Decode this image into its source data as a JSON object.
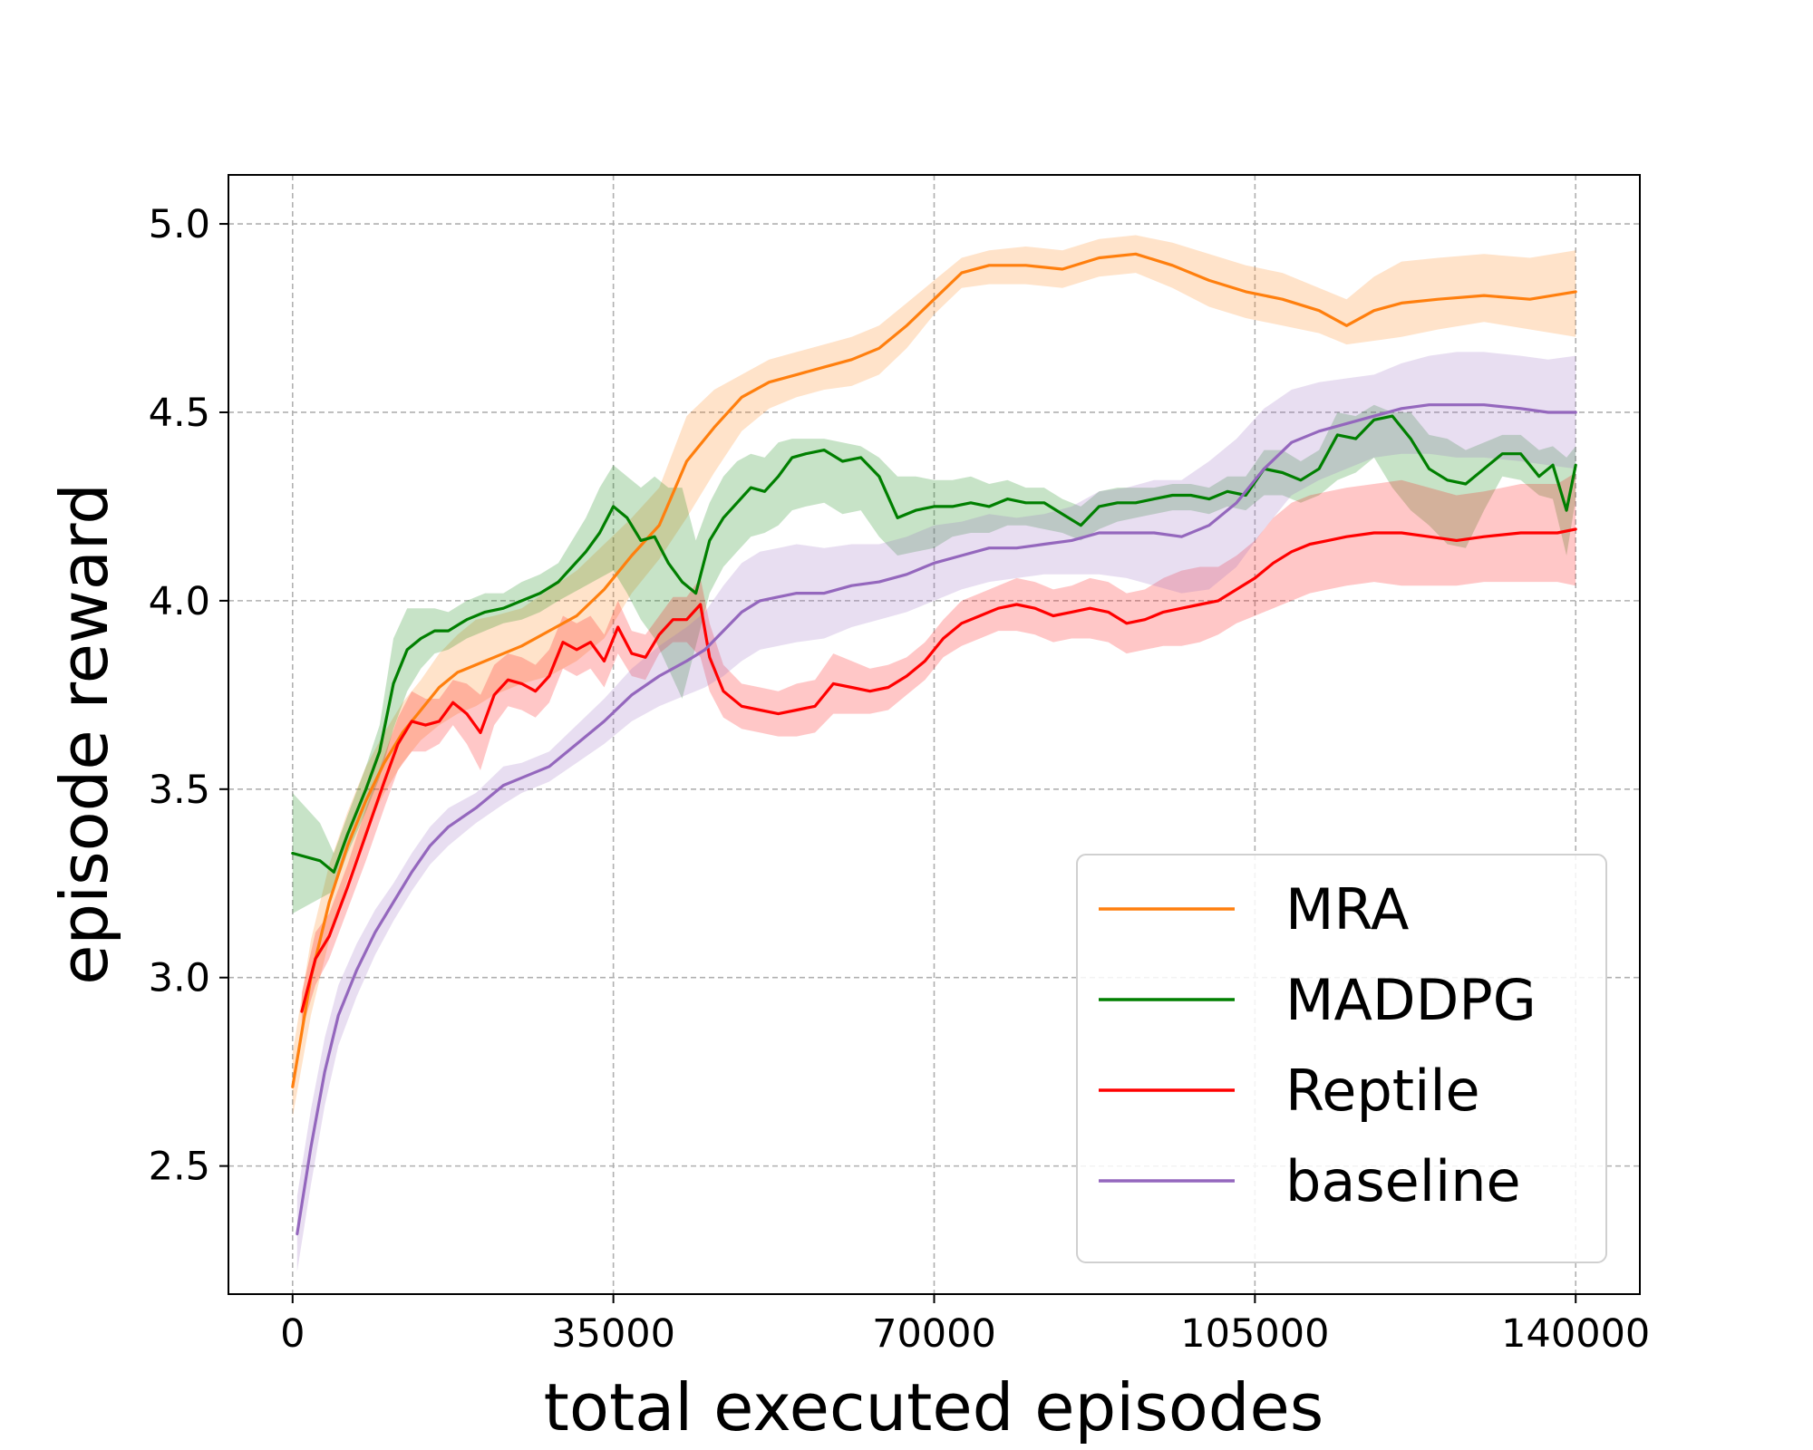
{
  "chart_data": {
    "type": "line",
    "title": "",
    "xlabel": "total executed episodes",
    "ylabel": "episode reward",
    "xlim": [
      -7000,
      147000
    ],
    "ylim": [
      2.16,
      5.13
    ],
    "xticks": [
      0,
      35000,
      70000,
      105000,
      140000
    ],
    "xtick_labels": [
      "0",
      "35000",
      "70000",
      "105000",
      "140000"
    ],
    "yticks": [
      2.5,
      3.0,
      3.5,
      4.0,
      4.5,
      5.0
    ],
    "ytick_labels": [
      "2.5",
      "3.0",
      "3.5",
      "4.0",
      "4.5",
      "5.0"
    ],
    "grid": true,
    "legend_position": "lower-right",
    "series": [
      {
        "name": "MRA",
        "color": "#ff7f0e",
        "x": [
          0,
          2000,
          4000,
          6000,
          8000,
          10000,
          12000,
          14000,
          16000,
          18000,
          20000,
          22000,
          25000,
          28000,
          31000,
          34000,
          37000,
          40000,
          43000,
          46000,
          49000,
          52000,
          55000,
          58000,
          61000,
          64000,
          67000,
          70000,
          73000,
          76000,
          80000,
          84000,
          88000,
          92000,
          96000,
          100000,
          104000,
          108000,
          112000,
          115000,
          118000,
          121000,
          125000,
          130000,
          135000,
          140000
        ],
        "y": [
          2.71,
          3.0,
          3.2,
          3.35,
          3.47,
          3.57,
          3.65,
          3.71,
          3.77,
          3.81,
          3.83,
          3.85,
          3.88,
          3.92,
          3.96,
          4.03,
          4.12,
          4.2,
          4.37,
          4.46,
          4.54,
          4.58,
          4.6,
          4.62,
          4.64,
          4.67,
          4.73,
          4.8,
          4.87,
          4.89,
          4.89,
          4.88,
          4.91,
          4.92,
          4.89,
          4.85,
          4.82,
          4.8,
          4.77,
          4.73,
          4.77,
          4.79,
          4.8,
          4.81,
          4.8,
          4.82
        ],
        "lower": [
          2.63,
          2.9,
          3.1,
          3.26,
          3.39,
          3.49,
          3.57,
          3.63,
          3.67,
          3.7,
          3.72,
          3.75,
          3.78,
          3.8,
          3.84,
          3.9,
          4.02,
          4.11,
          4.22,
          4.34,
          4.45,
          4.51,
          4.54,
          4.56,
          4.57,
          4.6,
          4.67,
          4.76,
          4.83,
          4.84,
          4.84,
          4.83,
          4.86,
          4.87,
          4.83,
          4.78,
          4.75,
          4.73,
          4.71,
          4.68,
          4.69,
          4.7,
          4.72,
          4.74,
          4.72,
          4.7
        ],
        "upper": [
          2.8,
          3.1,
          3.3,
          3.44,
          3.56,
          3.65,
          3.73,
          3.79,
          3.86,
          3.91,
          3.95,
          3.96,
          3.98,
          4.03,
          4.08,
          4.15,
          4.22,
          4.3,
          4.49,
          4.56,
          4.6,
          4.64,
          4.66,
          4.68,
          4.7,
          4.73,
          4.79,
          4.85,
          4.91,
          4.93,
          4.94,
          4.93,
          4.96,
          4.97,
          4.95,
          4.92,
          4.89,
          4.87,
          4.83,
          4.8,
          4.86,
          4.9,
          4.91,
          4.92,
          4.91,
          4.93
        ]
      },
      {
        "name": "MADDPG",
        "color": "#007f00",
        "x": [
          0,
          3000,
          4500,
          6000,
          8000,
          9500,
          11000,
          12500,
          14000,
          15500,
          17000,
          19000,
          21000,
          23000,
          25000,
          27000,
          29000,
          30500,
          32000,
          33500,
          35000,
          36500,
          38000,
          39500,
          41000,
          42500,
          44000,
          45500,
          47000,
          48500,
          50000,
          51500,
          53000,
          54500,
          56000,
          58000,
          60000,
          62000,
          64000,
          66000,
          68000,
          70000,
          72000,
          74000,
          76000,
          78000,
          80000,
          82000,
          84000,
          86000,
          88000,
          90000,
          92000,
          94000,
          96000,
          98000,
          100000,
          102000,
          104000,
          106000,
          108000,
          110000,
          112000,
          114000,
          116000,
          118000,
          120000,
          122000,
          124000,
          126000,
          128000,
          130000,
          132000,
          134000,
          136000,
          137500,
          139000,
          140000
        ],
        "y": [
          3.33,
          3.31,
          3.28,
          3.38,
          3.5,
          3.6,
          3.78,
          3.87,
          3.9,
          3.92,
          3.92,
          3.95,
          3.97,
          3.98,
          4.0,
          4.02,
          4.05,
          4.09,
          4.13,
          4.18,
          4.25,
          4.22,
          4.16,
          4.17,
          4.1,
          4.05,
          4.02,
          4.16,
          4.22,
          4.26,
          4.3,
          4.29,
          4.33,
          4.38,
          4.39,
          4.4,
          4.37,
          4.38,
          4.33,
          4.22,
          4.24,
          4.25,
          4.25,
          4.26,
          4.25,
          4.27,
          4.26,
          4.26,
          4.23,
          4.2,
          4.25,
          4.26,
          4.26,
          4.27,
          4.28,
          4.28,
          4.27,
          4.29,
          4.28,
          4.35,
          4.34,
          4.32,
          4.35,
          4.44,
          4.43,
          4.48,
          4.49,
          4.43,
          4.35,
          4.32,
          4.31,
          4.35,
          4.39,
          4.39,
          4.33,
          4.36,
          4.24,
          4.36
        ],
        "lower": [
          3.17,
          3.21,
          3.23,
          3.33,
          3.44,
          3.53,
          3.66,
          3.76,
          3.82,
          3.86,
          3.87,
          3.9,
          3.92,
          3.94,
          3.95,
          3.97,
          4.0,
          4.02,
          4.04,
          4.06,
          4.08,
          4.02,
          3.95,
          3.9,
          3.82,
          3.74,
          3.88,
          4.02,
          4.09,
          4.13,
          4.17,
          4.18,
          4.2,
          4.24,
          4.25,
          4.26,
          4.23,
          4.24,
          4.17,
          4.12,
          4.13,
          4.14,
          4.17,
          4.18,
          4.18,
          4.2,
          4.2,
          4.19,
          4.18,
          4.16,
          4.19,
          4.21,
          4.22,
          4.23,
          4.24,
          4.24,
          4.23,
          4.25,
          4.24,
          4.28,
          4.28,
          4.26,
          4.28,
          4.32,
          4.34,
          4.38,
          4.3,
          4.24,
          4.2,
          4.15,
          4.14,
          4.24,
          4.33,
          4.32,
          4.28,
          4.27,
          4.12,
          4.27
        ],
        "upper": [
          3.49,
          3.41,
          3.33,
          3.43,
          3.56,
          3.67,
          3.9,
          3.98,
          3.98,
          3.98,
          3.97,
          4.0,
          4.02,
          4.02,
          4.05,
          4.07,
          4.1,
          4.16,
          4.22,
          4.3,
          4.36,
          4.33,
          4.3,
          4.33,
          4.3,
          4.3,
          4.16,
          4.26,
          4.33,
          4.37,
          4.39,
          4.38,
          4.42,
          4.43,
          4.43,
          4.43,
          4.42,
          4.41,
          4.38,
          4.33,
          4.33,
          4.32,
          4.32,
          4.33,
          4.31,
          4.32,
          4.3,
          4.3,
          4.27,
          4.25,
          4.29,
          4.3,
          4.3,
          4.3,
          4.31,
          4.31,
          4.3,
          4.33,
          4.33,
          4.4,
          4.4,
          4.37,
          4.4,
          4.5,
          4.49,
          4.52,
          4.5,
          4.5,
          4.44,
          4.43,
          4.4,
          4.42,
          4.44,
          4.44,
          4.4,
          4.41,
          4.38,
          4.41
        ]
      },
      {
        "name": "Reptile",
        "color": "#ff0000",
        "x": [
          1000,
          2500,
          4000,
          6000,
          8000,
          10000,
          11500,
          13000,
          14500,
          16000,
          17500,
          19000,
          20500,
          22000,
          23500,
          25000,
          26500,
          28000,
          29500,
          31000,
          32500,
          34000,
          35500,
          37000,
          38500,
          40000,
          41500,
          43000,
          44500,
          45500,
          47000,
          49000,
          51000,
          53000,
          55000,
          57000,
          59000,
          61000,
          63000,
          65000,
          67000,
          69000,
          71000,
          73000,
          75000,
          77000,
          79000,
          81000,
          83000,
          85000,
          87000,
          89000,
          91000,
          93000,
          95000,
          97000,
          99000,
          101000,
          103000,
          105000,
          107000,
          109000,
          111000,
          113000,
          115000,
          118000,
          121000,
          124000,
          127000,
          130000,
          134000,
          138000,
          140000
        ],
        "y": [
          2.91,
          3.05,
          3.11,
          3.24,
          3.38,
          3.52,
          3.62,
          3.68,
          3.67,
          3.68,
          3.73,
          3.7,
          3.65,
          3.75,
          3.79,
          3.78,
          3.76,
          3.8,
          3.89,
          3.87,
          3.89,
          3.84,
          3.93,
          3.86,
          3.85,
          3.91,
          3.95,
          3.95,
          3.99,
          3.85,
          3.76,
          3.72,
          3.71,
          3.7,
          3.71,
          3.72,
          3.78,
          3.77,
          3.76,
          3.77,
          3.8,
          3.84,
          3.9,
          3.94,
          3.96,
          3.98,
          3.99,
          3.98,
          3.96,
          3.97,
          3.98,
          3.97,
          3.94,
          3.95,
          3.97,
          3.98,
          3.99,
          4.0,
          4.03,
          4.06,
          4.1,
          4.13,
          4.15,
          4.16,
          4.17,
          4.18,
          4.18,
          4.17,
          4.16,
          4.17,
          4.18,
          4.18,
          4.19
        ],
        "lower": [
          2.86,
          2.98,
          3.05,
          3.18,
          3.31,
          3.45,
          3.55,
          3.6,
          3.6,
          3.62,
          3.67,
          3.62,
          3.55,
          3.67,
          3.72,
          3.71,
          3.69,
          3.73,
          3.82,
          3.8,
          3.82,
          3.77,
          3.86,
          3.8,
          3.79,
          3.86,
          3.89,
          3.89,
          3.85,
          3.76,
          3.69,
          3.66,
          3.65,
          3.64,
          3.64,
          3.65,
          3.7,
          3.7,
          3.7,
          3.71,
          3.75,
          3.79,
          3.85,
          3.88,
          3.9,
          3.92,
          3.92,
          3.91,
          3.89,
          3.9,
          3.9,
          3.89,
          3.86,
          3.87,
          3.88,
          3.88,
          3.89,
          3.91,
          3.94,
          3.96,
          3.98,
          4.0,
          4.02,
          4.03,
          4.04,
          4.05,
          4.04,
          4.04,
          4.04,
          4.05,
          4.05,
          4.05,
          4.04
        ],
        "upper": [
          2.96,
          3.12,
          3.17,
          3.3,
          3.45,
          3.59,
          3.69,
          3.76,
          3.74,
          3.74,
          3.79,
          3.78,
          3.75,
          3.83,
          3.86,
          3.85,
          3.83,
          3.87,
          3.96,
          3.94,
          3.96,
          3.91,
          4.0,
          3.92,
          3.91,
          3.96,
          4.01,
          4.01,
          4.06,
          3.94,
          3.83,
          3.78,
          3.77,
          3.76,
          3.78,
          3.79,
          3.86,
          3.84,
          3.82,
          3.83,
          3.85,
          3.89,
          3.95,
          4.0,
          4.02,
          4.04,
          4.06,
          4.05,
          4.03,
          4.04,
          4.06,
          4.05,
          4.02,
          4.03,
          4.06,
          4.08,
          4.09,
          4.09,
          4.12,
          4.16,
          4.22,
          4.26,
          4.28,
          4.29,
          4.3,
          4.31,
          4.32,
          4.3,
          4.28,
          4.29,
          4.31,
          4.31,
          4.34
        ]
      },
      {
        "name": "baseline",
        "color": "#9467bd",
        "x": [
          500,
          2000,
          3500,
          5000,
          7000,
          9000,
          11000,
          13000,
          15000,
          17000,
          20000,
          23000,
          25000,
          28000,
          31000,
          34000,
          37000,
          40000,
          43000,
          45000,
          47000,
          49000,
          51000,
          53000,
          55000,
          58000,
          61000,
          64000,
          67000,
          70000,
          73000,
          76000,
          79000,
          82000,
          85000,
          88000,
          91000,
          94000,
          97000,
          100000,
          103000,
          106000,
          109000,
          112000,
          115000,
          118000,
          121000,
          124000,
          127000,
          130000,
          134000,
          137000,
          140000
        ],
        "y": [
          2.32,
          2.55,
          2.75,
          2.9,
          3.02,
          3.12,
          3.2,
          3.28,
          3.35,
          3.4,
          3.45,
          3.51,
          3.53,
          3.56,
          3.62,
          3.68,
          3.75,
          3.8,
          3.84,
          3.87,
          3.92,
          3.97,
          4.0,
          4.01,
          4.02,
          4.02,
          4.04,
          4.05,
          4.07,
          4.1,
          4.12,
          4.14,
          4.14,
          4.15,
          4.16,
          4.18,
          4.18,
          4.18,
          4.17,
          4.2,
          4.26,
          4.35,
          4.42,
          4.45,
          4.47,
          4.49,
          4.51,
          4.52,
          4.52,
          4.52,
          4.51,
          4.5,
          4.5
        ],
        "lower": [
          2.22,
          2.45,
          2.66,
          2.82,
          2.95,
          3.06,
          3.15,
          3.23,
          3.3,
          3.35,
          3.41,
          3.46,
          3.49,
          3.52,
          3.57,
          3.62,
          3.68,
          3.72,
          3.75,
          3.77,
          3.8,
          3.84,
          3.87,
          3.88,
          3.89,
          3.9,
          3.93,
          3.95,
          3.97,
          4.0,
          4.03,
          4.05,
          4.06,
          4.07,
          4.07,
          4.07,
          4.06,
          4.04,
          4.02,
          4.03,
          4.09,
          4.19,
          4.28,
          4.32,
          4.35,
          4.38,
          4.39,
          4.39,
          4.38,
          4.38,
          4.37,
          4.36,
          4.35
        ],
        "upper": [
          2.42,
          2.65,
          2.84,
          2.98,
          3.09,
          3.18,
          3.25,
          3.33,
          3.4,
          3.45,
          3.49,
          3.56,
          3.57,
          3.6,
          3.67,
          3.74,
          3.82,
          3.88,
          3.93,
          3.97,
          4.04,
          4.1,
          4.13,
          4.14,
          4.15,
          4.14,
          4.15,
          4.15,
          4.17,
          4.2,
          4.21,
          4.23,
          4.22,
          4.23,
          4.25,
          4.29,
          4.3,
          4.32,
          4.32,
          4.37,
          4.43,
          4.51,
          4.56,
          4.58,
          4.59,
          4.6,
          4.63,
          4.65,
          4.66,
          4.66,
          4.65,
          4.64,
          4.65
        ]
      }
    ]
  }
}
